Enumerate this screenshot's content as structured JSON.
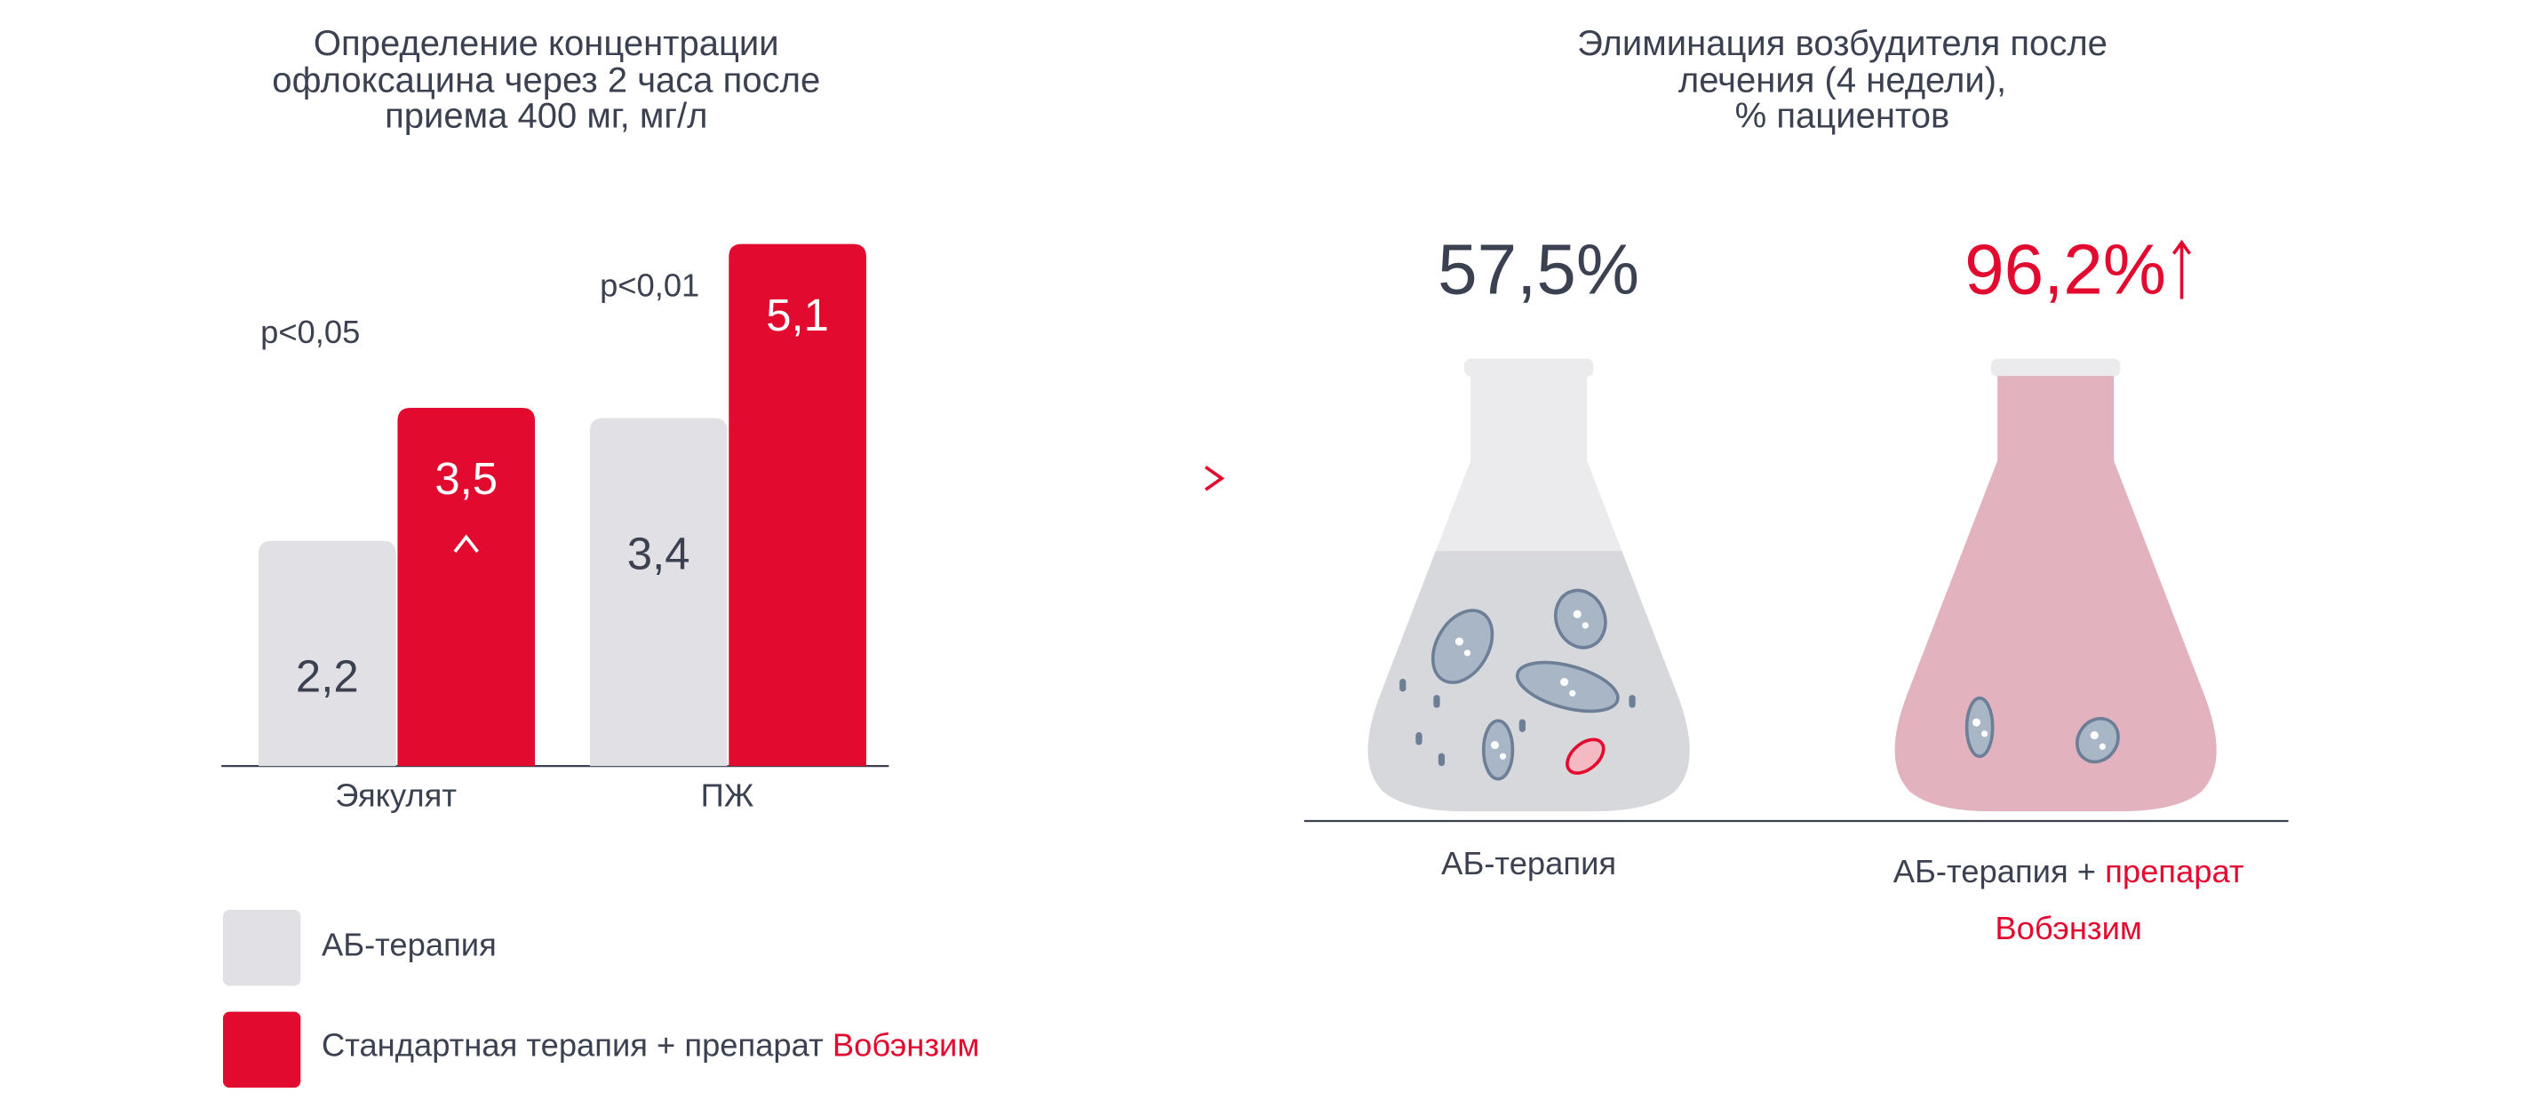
{
  "chart_data": [
    {
      "type": "bar",
      "title": "Определение концентрации\nофлоксацина через 2 часа после\nприема 400 мг, мг/л",
      "categories": [
        "Эякулят",
        "ПЖ"
      ],
      "series": [
        {
          "name": "АБ-терапия",
          "color": "#e1e1e5",
          "values": [
            2.2,
            3.4
          ],
          "value_labels": [
            "2,2",
            "3,4"
          ]
        },
        {
          "name": "Стандартная терапия + препарат Вобэнзим",
          "color": "#e30a2f",
          "values": [
            3.5,
            5.1
          ],
          "value_labels": [
            "3,5",
            "5,1"
          ]
        }
      ],
      "annotations": [
        "p<0,05",
        "p<0,01"
      ]
    },
    {
      "type": "flask",
      "title": "Элиминация возбудителя после\nлечения (4 недели),\n% пациентов",
      "categories": [
        "АБ-терапия",
        "АБ-терапия + препарат Вобэнзим"
      ],
      "values": [
        57.5,
        96.2
      ],
      "value_labels": [
        "57,5%",
        "96,2%"
      ],
      "colors": [
        "#d7d8dc",
        "#e2b3bf"
      ]
    }
  ]
}
